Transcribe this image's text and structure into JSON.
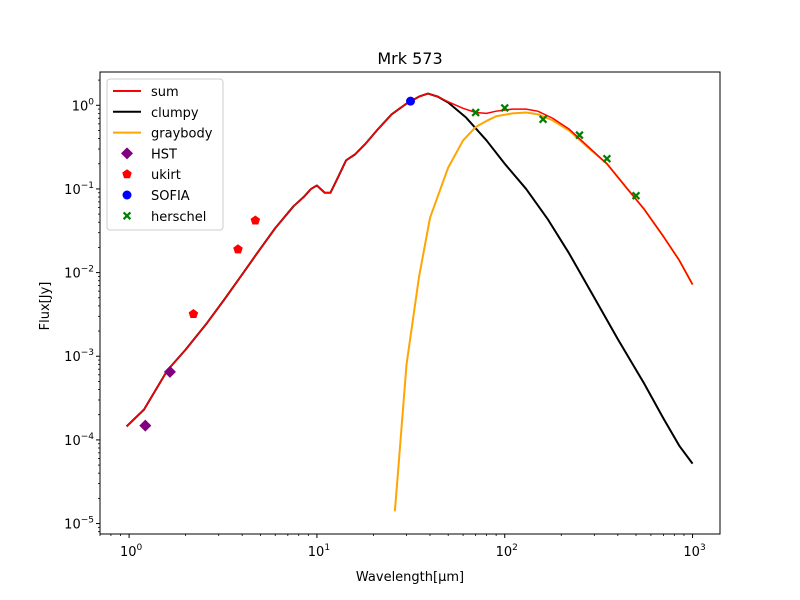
{
  "chart_data": {
    "type": "line",
    "title": "Mrk 573",
    "xlabel": "Wavelength[μm]",
    "ylabel": "Flux[Jy]",
    "xscale": "log",
    "yscale": "log",
    "xlim": [
      0.7,
      1400
    ],
    "ylim": [
      7.5e-06,
      2.5
    ],
    "grid": false,
    "legend_position": "upper-left",
    "x_ticks": [
      {
        "value": 1,
        "base": "10",
        "exp": "0"
      },
      {
        "value": 10,
        "base": "10",
        "exp": "1"
      },
      {
        "value": 100,
        "base": "10",
        "exp": "2"
      },
      {
        "value": 1000,
        "base": "10",
        "exp": "3"
      }
    ],
    "y_ticks": [
      {
        "value": 1e-05,
        "base": "10",
        "exp": "−5"
      },
      {
        "value": 0.0001,
        "base": "10",
        "exp": "−4"
      },
      {
        "value": 0.001,
        "base": "10",
        "exp": "−3"
      },
      {
        "value": 0.01,
        "base": "10",
        "exp": "−2"
      },
      {
        "value": 0.1,
        "base": "10",
        "exp": "−1"
      },
      {
        "value": 1,
        "base": "10",
        "exp": "0"
      }
    ],
    "lines": [
      {
        "name": "clumpy",
        "color": "#000000",
        "points": [
          [
            0.97,
            0.000145
          ],
          [
            1.2,
            0.00023
          ],
          [
            1.6,
            0.00068
          ],
          [
            2.0,
            0.0012
          ],
          [
            2.6,
            0.0025
          ],
          [
            3.2,
            0.0047
          ],
          [
            4.0,
            0.0095
          ],
          [
            4.8,
            0.017
          ],
          [
            6.0,
            0.034
          ],
          [
            7.5,
            0.062
          ],
          [
            8.5,
            0.08
          ],
          [
            9.3,
            0.1
          ],
          [
            10.0,
            0.11
          ],
          [
            11.0,
            0.09
          ],
          [
            11.8,
            0.09
          ],
          [
            13.0,
            0.14
          ],
          [
            14.3,
            0.22
          ],
          [
            16.0,
            0.26
          ],
          [
            18.0,
            0.34
          ],
          [
            21.0,
            0.51
          ],
          [
            25.0,
            0.78
          ],
          [
            30.0,
            1.05
          ],
          [
            35.0,
            1.27
          ],
          [
            39.0,
            1.38
          ],
          [
            44.0,
            1.27
          ],
          [
            50.0,
            1.08
          ],
          [
            62.0,
            0.72
          ],
          [
            80.0,
            0.38
          ],
          [
            100.0,
            0.2
          ],
          [
            130.0,
            0.1
          ],
          [
            170.0,
            0.043
          ],
          [
            220.0,
            0.017
          ],
          [
            300.0,
            0.005
          ],
          [
            400.0,
            0.0016
          ],
          [
            550.0,
            0.00048
          ],
          [
            700.0,
            0.00018
          ],
          [
            850.0,
            8.5e-05
          ],
          [
            1000.0,
            5.2e-05
          ]
        ]
      },
      {
        "name": "graybody",
        "color": "#ffa500",
        "points": [
          [
            26.0,
            1.4e-05
          ],
          [
            27.0,
            4e-05
          ],
          [
            30.0,
            0.0008
          ],
          [
            35.0,
            0.009
          ],
          [
            40.0,
            0.045
          ],
          [
            50.0,
            0.18
          ],
          [
            60.0,
            0.38
          ],
          [
            70.0,
            0.55
          ],
          [
            80.0,
            0.65
          ],
          [
            90.0,
            0.74
          ],
          [
            110.0,
            0.8
          ],
          [
            130.0,
            0.82
          ],
          [
            150.0,
            0.78
          ],
          [
            180.0,
            0.66
          ],
          [
            220.0,
            0.5
          ],
          [
            270.0,
            0.33
          ],
          [
            350.0,
            0.2
          ],
          [
            450.0,
            0.1
          ],
          [
            550.0,
            0.058
          ],
          [
            700.0,
            0.027
          ],
          [
            850.0,
            0.014
          ],
          [
            1000.0,
            0.0072
          ]
        ]
      },
      {
        "name": "sum",
        "color": "#ff0000",
        "points": [
          [
            0.97,
            0.000145
          ],
          [
            1.2,
            0.00023
          ],
          [
            1.6,
            0.00068
          ],
          [
            2.0,
            0.0012
          ],
          [
            2.6,
            0.0025
          ],
          [
            3.2,
            0.0047
          ],
          [
            4.0,
            0.0095
          ],
          [
            4.8,
            0.017
          ],
          [
            6.0,
            0.034
          ],
          [
            7.5,
            0.062
          ],
          [
            8.5,
            0.08
          ],
          [
            9.3,
            0.1
          ],
          [
            10.0,
            0.11
          ],
          [
            11.0,
            0.09
          ],
          [
            11.8,
            0.09
          ],
          [
            13.0,
            0.14
          ],
          [
            14.3,
            0.22
          ],
          [
            16.0,
            0.26
          ],
          [
            18.0,
            0.34
          ],
          [
            21.0,
            0.51
          ],
          [
            25.0,
            0.78
          ],
          [
            30.0,
            1.05
          ],
          [
            35.0,
            1.27
          ],
          [
            39.0,
            1.38
          ],
          [
            44.0,
            1.27
          ],
          [
            50.0,
            1.1
          ],
          [
            60.0,
            0.92
          ],
          [
            70.0,
            0.82
          ],
          [
            80.0,
            0.8
          ],
          [
            90.0,
            0.85
          ],
          [
            110.0,
            0.9
          ],
          [
            130.0,
            0.9
          ],
          [
            150.0,
            0.85
          ],
          [
            180.0,
            0.7
          ],
          [
            220.0,
            0.52
          ],
          [
            270.0,
            0.34
          ],
          [
            350.0,
            0.2
          ],
          [
            450.0,
            0.1
          ],
          [
            550.0,
            0.058
          ],
          [
            700.0,
            0.027
          ],
          [
            850.0,
            0.014
          ],
          [
            1000.0,
            0.0072
          ]
        ]
      }
    ],
    "scatter": [
      {
        "name": "HST",
        "color": "#800080",
        "marker": "diamond",
        "points": [
          [
            1.22,
            0.000148
          ],
          [
            1.65,
            0.00065
          ]
        ]
      },
      {
        "name": "ukirt",
        "color": "#ff0000",
        "marker": "pentagon",
        "points": [
          [
            2.2,
            0.0032
          ],
          [
            3.8,
            0.019
          ],
          [
            4.7,
            0.042
          ]
        ]
      },
      {
        "name": "SOFIA",
        "color": "#0000ff",
        "marker": "circle",
        "points": [
          [
            31.5,
            1.12
          ]
        ]
      },
      {
        "name": "herschel",
        "color": "#008000",
        "marker": "x",
        "points": [
          [
            70,
            0.82
          ],
          [
            100,
            0.93
          ],
          [
            160,
            0.68
          ],
          [
            250,
            0.44
          ],
          [
            350,
            0.23
          ],
          [
            500,
            0.083
          ]
        ]
      }
    ],
    "legend": [
      {
        "label": "sum",
        "kind": "line",
        "color": "#ff0000"
      },
      {
        "label": "clumpy",
        "kind": "line",
        "color": "#000000"
      },
      {
        "label": "graybody",
        "kind": "line",
        "color": "#ffa500"
      },
      {
        "label": "HST",
        "kind": "marker",
        "marker": "diamond",
        "color": "#800080"
      },
      {
        "label": "ukirt",
        "kind": "marker",
        "marker": "pentagon",
        "color": "#ff0000"
      },
      {
        "label": "SOFIA",
        "kind": "marker",
        "marker": "circle",
        "color": "#0000ff"
      },
      {
        "label": "herschel",
        "kind": "marker",
        "marker": "x",
        "color": "#008000"
      }
    ]
  }
}
